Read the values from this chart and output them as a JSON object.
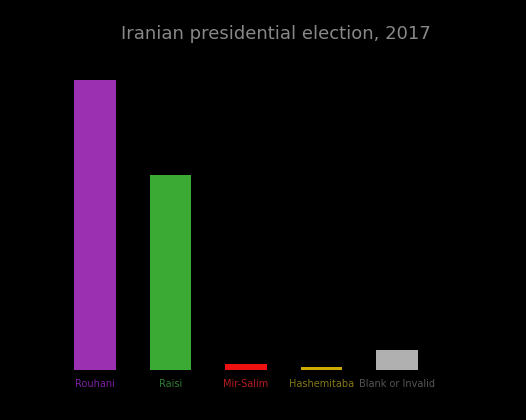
{
  "title": "Iranian presidential election, 2017",
  "categories": [
    "Rouhani",
    "Raisi",
    "Mir-Salim",
    "Hashemitaba",
    "Blank or Invalid"
  ],
  "values": [
    23549616,
    15835750,
    478215,
    215450,
    1606796
  ],
  "bar_colors": [
    "#9b30b0",
    "#3aaa35",
    "#ee1111",
    "#ccaa00",
    "#b0b0b0"
  ],
  "label_colors": [
    "#7b1fa2",
    "#2e7d32",
    "#b71c1c",
    "#827717",
    "#555555"
  ],
  "background_color": "#000000",
  "title_color": "#888888",
  "title_fontsize": 13,
  "bar_width": 0.55,
  "ylim": [
    0,
    26000000
  ]
}
